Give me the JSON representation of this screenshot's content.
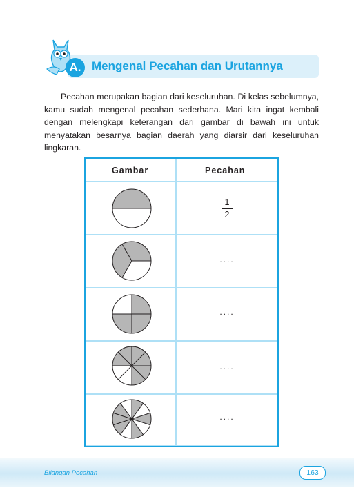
{
  "section": {
    "badge": "A.",
    "title": "Mengenal Pecahan dan Urutannya"
  },
  "intro": "Pecahan merupakan bagian dari keseluruhan. Di kelas sebelumnya, kamu sudah mengenal pecahan sederhana. Mari kita ingat kembali dengan melengkapi keterangan dari gambar di bawah ini untuk menyatakan besarnya bagian daerah yang diarsir dari keseluruhan lingkaran.",
  "table": {
    "headers": [
      "Gambar",
      "Pecahan"
    ],
    "rows": [
      {
        "figure": "circle halves, 1 of 2 shaded",
        "numerator": "1",
        "denominator": "2"
      },
      {
        "figure": "circle thirds, 2 of 3 shaded",
        "answer": "...."
      },
      {
        "figure": "circle quarters, 3 of 4 shaded",
        "answer": "...."
      },
      {
        "figure": "circle eighths, 6 of 8 shaded",
        "answer": "...."
      },
      {
        "figure": "circle tenths, 6 of 10 shaded",
        "answer": "...."
      }
    ]
  },
  "footer": {
    "book": "Bilangan Pecahan",
    "page": "163"
  },
  "colors": {
    "accent": "#1ba4e0",
    "table_border": "#aee0f6",
    "shade": "#b6b6b6"
  }
}
